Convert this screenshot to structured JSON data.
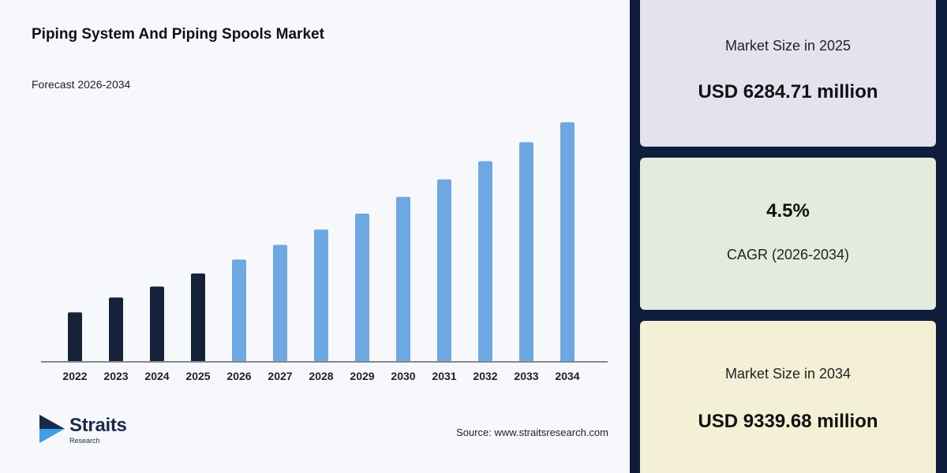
{
  "title": "Piping System And Piping Spools Market",
  "subtitle": "Forecast 2026-2034",
  "source": "Source: www.straitsresearch.com",
  "logo": {
    "name": "Straits",
    "sub": "Research"
  },
  "cards": [
    {
      "label": "Market Size in 2025",
      "value": "USD 6284.71 million"
    },
    {
      "value": "4.5%",
      "label": "CAGR (2026-2034)"
    },
    {
      "label": "Market Size in 2034",
      "value": "USD 9339.68 million"
    }
  ],
  "colors": {
    "historic": "#16213a",
    "forecast": "#6ea8e2",
    "axis": "#888888",
    "background": "#0f1d3d"
  },
  "chart_data": {
    "type": "bar",
    "categories": [
      "2022",
      "2023",
      "2024",
      "2025",
      "2026",
      "2027",
      "2028",
      "2029",
      "2030",
      "2031",
      "2032",
      "2033",
      "2034"
    ],
    "values": [
      5500,
      5800,
      6020,
      6284.71,
      6567,
      6863,
      7172,
      7494,
      7832,
      8184,
      8552,
      8937,
      9339.68
    ],
    "historic_count": 4,
    "ylim": [
      4500,
      9500
    ],
    "grid": false,
    "legend": "none"
  }
}
